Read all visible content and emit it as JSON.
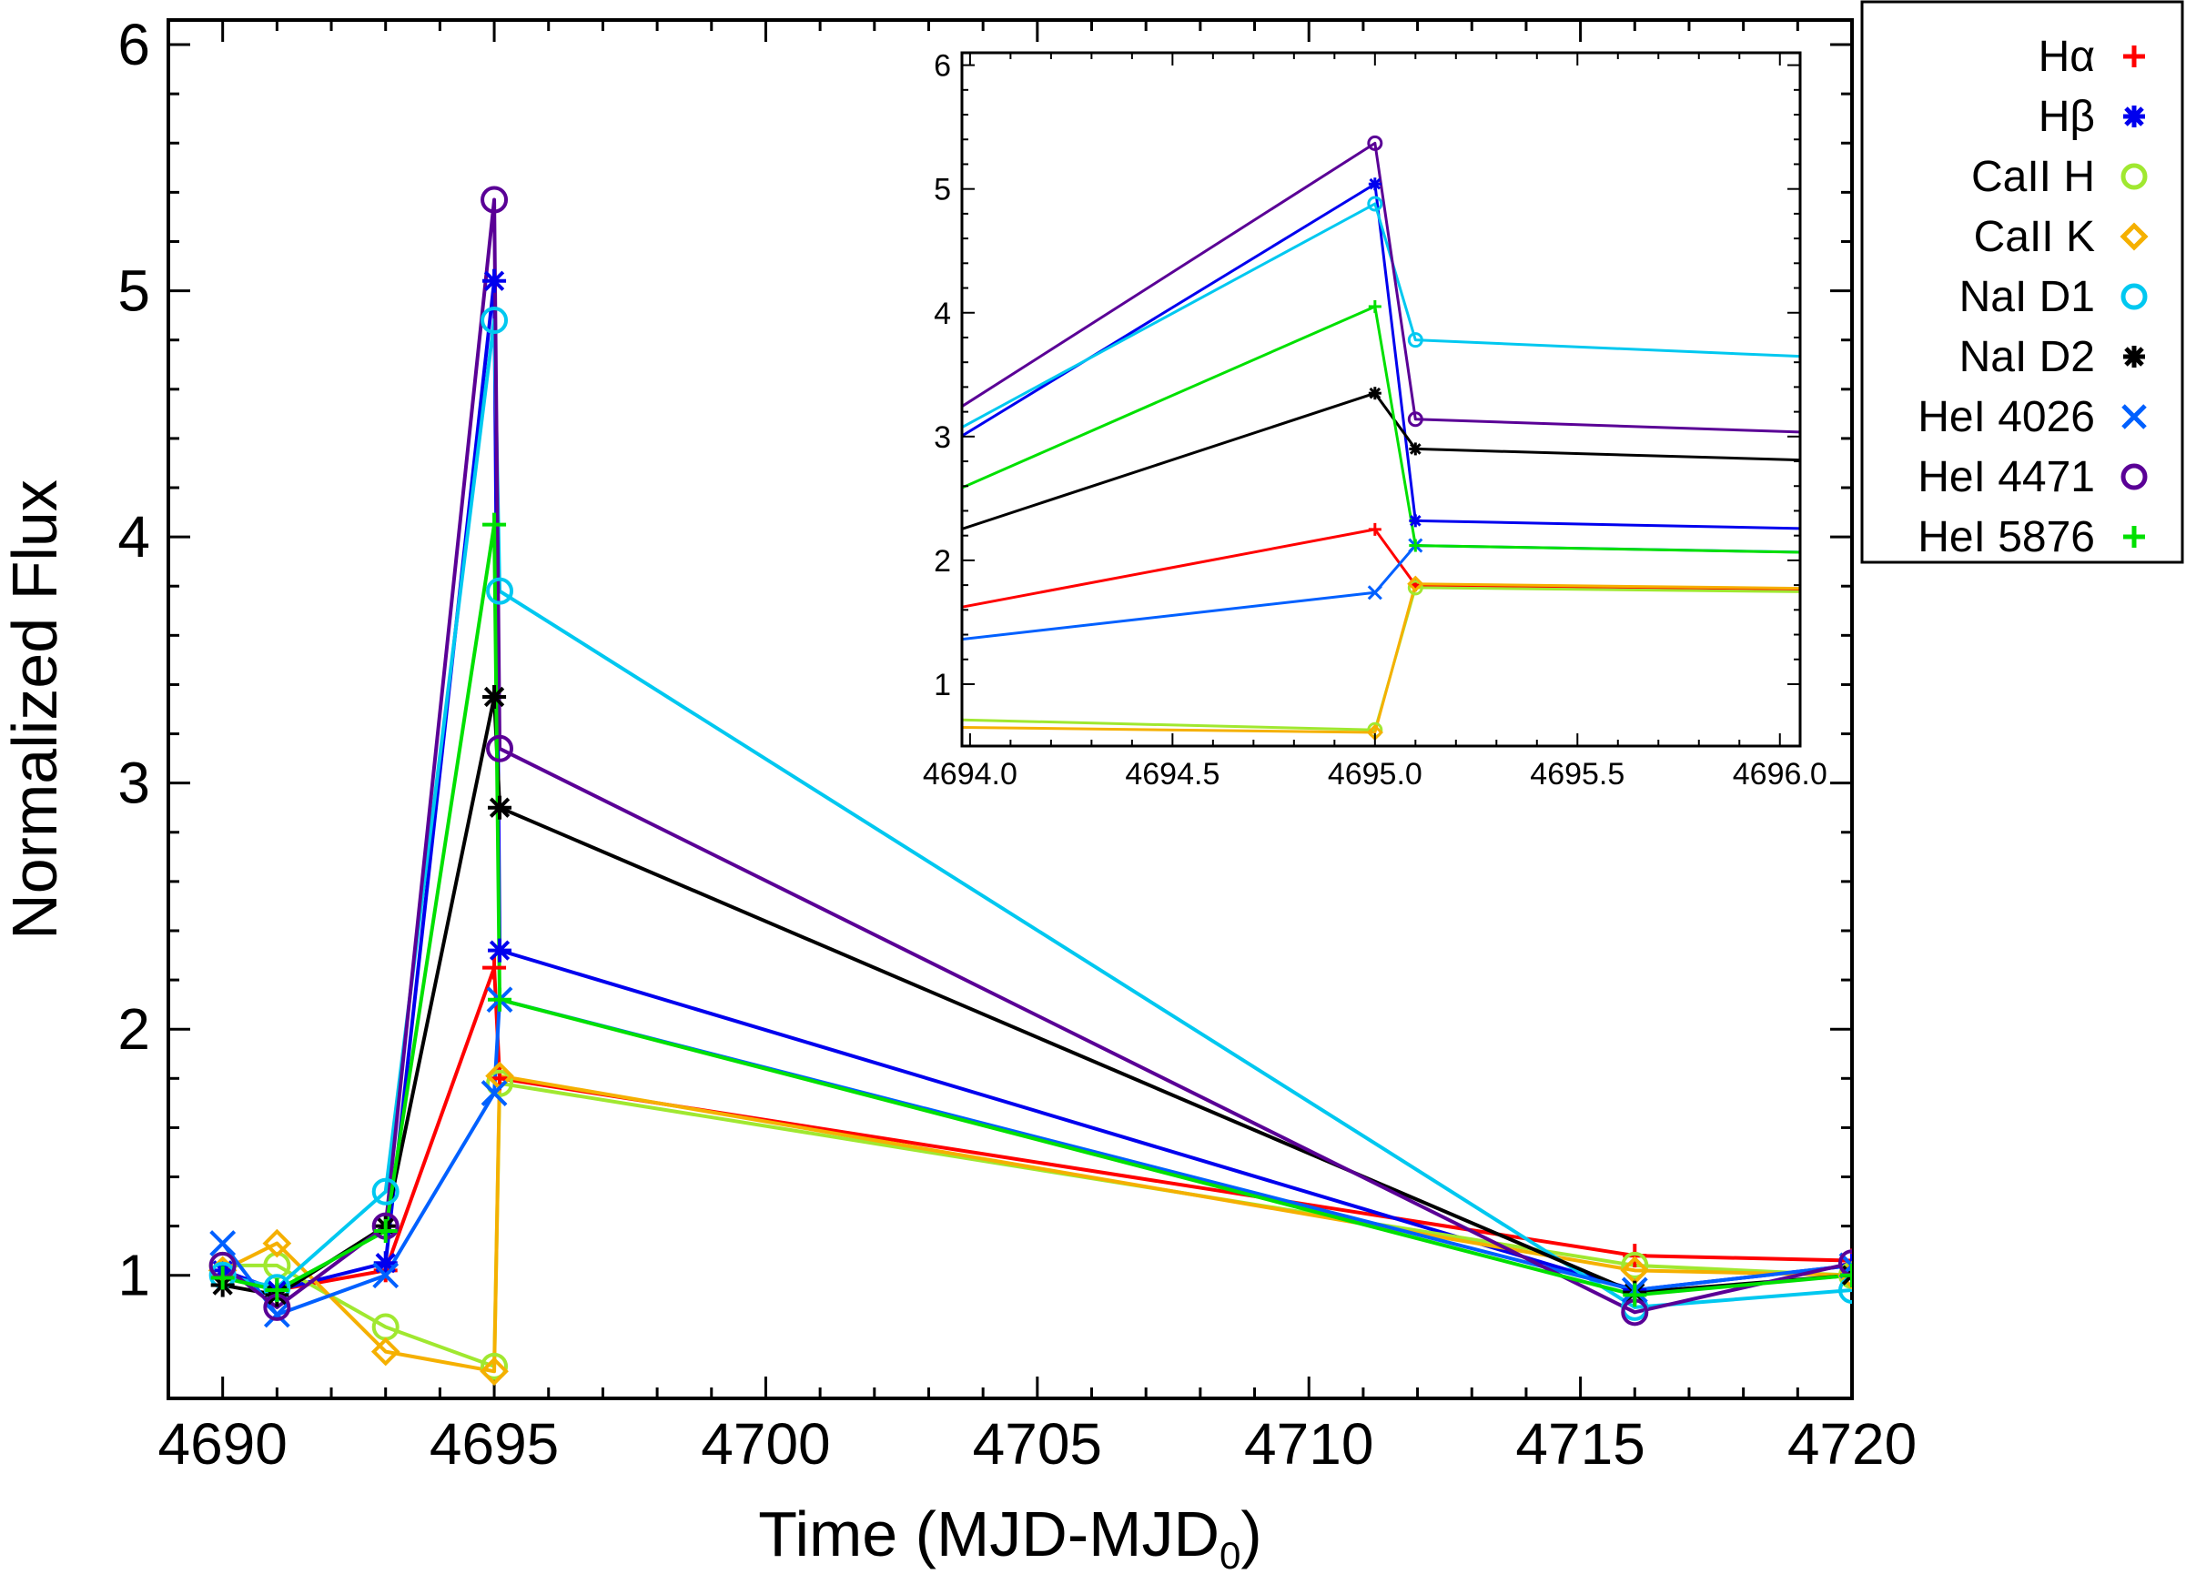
{
  "chart_data": [
    {
      "id": "main",
      "type": "line",
      "xlabel": "Time (MJD-MJD",
      "xlabel_sub": "0",
      "xlabel_close": ")",
      "ylabel": "Normalized Flux",
      "xlim": [
        4689,
        4720
      ],
      "ylim": [
        0.5,
        6.1
      ],
      "xticks": [
        4690,
        4695,
        4700,
        4705,
        4710,
        4715,
        4720
      ],
      "yticks": [
        1,
        2,
        3,
        4,
        5,
        6
      ],
      "x": [
        4690,
        4691,
        4693,
        4695,
        4695.1,
        4716,
        4720
      ],
      "series": [
        {
          "name": "Hα",
          "color": "#ff0000",
          "marker": "plus",
          "values": [
            1.0,
            0.94,
            1.02,
            2.25,
            1.8,
            1.08,
            1.06
          ]
        },
        {
          "name": "Hβ",
          "color": "#0000ee",
          "marker": "asterisk",
          "values": [
            1.02,
            0.94,
            1.05,
            5.04,
            2.32,
            0.94,
            1.04
          ]
        },
        {
          "name": "CaII H",
          "color": "#a0e830",
          "marker": "circle",
          "values": [
            1.04,
            1.04,
            0.79,
            0.63,
            1.78,
            1.04,
            1.0
          ]
        },
        {
          "name": "CaII K",
          "color": "#f5b000",
          "marker": "diamond",
          "values": [
            1.02,
            1.13,
            0.69,
            0.61,
            1.81,
            1.02,
            1.0
          ]
        },
        {
          "name": "NaI D1",
          "color": "#00c8f0",
          "marker": "circle",
          "values": [
            1.0,
            0.95,
            1.34,
            4.88,
            3.78,
            0.87,
            0.94
          ]
        },
        {
          "name": "NaI D2",
          "color": "#000000",
          "marker": "asterisk",
          "values": [
            0.96,
            0.92,
            1.2,
            3.35,
            2.9,
            0.93,
            1.0
          ]
        },
        {
          "name": "HeI 4026",
          "color": "#0060ff",
          "marker": "x",
          "values": [
            1.13,
            0.84,
            1.0,
            1.74,
            2.12,
            0.94,
            1.04
          ]
        },
        {
          "name": "HeI 4471",
          "color": "#5a0096",
          "marker": "circle",
          "values": [
            1.04,
            0.87,
            1.2,
            5.37,
            3.14,
            0.85,
            1.05
          ]
        },
        {
          "name": "HeI 5876",
          "color": "#00e000",
          "marker": "plus",
          "values": [
            0.99,
            0.94,
            1.18,
            4.05,
            2.12,
            0.92,
            1.0
          ]
        }
      ]
    },
    {
      "id": "inset",
      "type": "line",
      "xlim": [
        4693.98,
        4696.05
      ],
      "ylim": [
        0.5,
        6.1
      ],
      "xticks": [
        "4694.0",
        "4694.5",
        "4695.0",
        "4695.5",
        "4696.0"
      ],
      "yticks": [
        1,
        2,
        3,
        4,
        5,
        6
      ]
    }
  ],
  "legend": {
    "placement": "right, outside top"
  }
}
